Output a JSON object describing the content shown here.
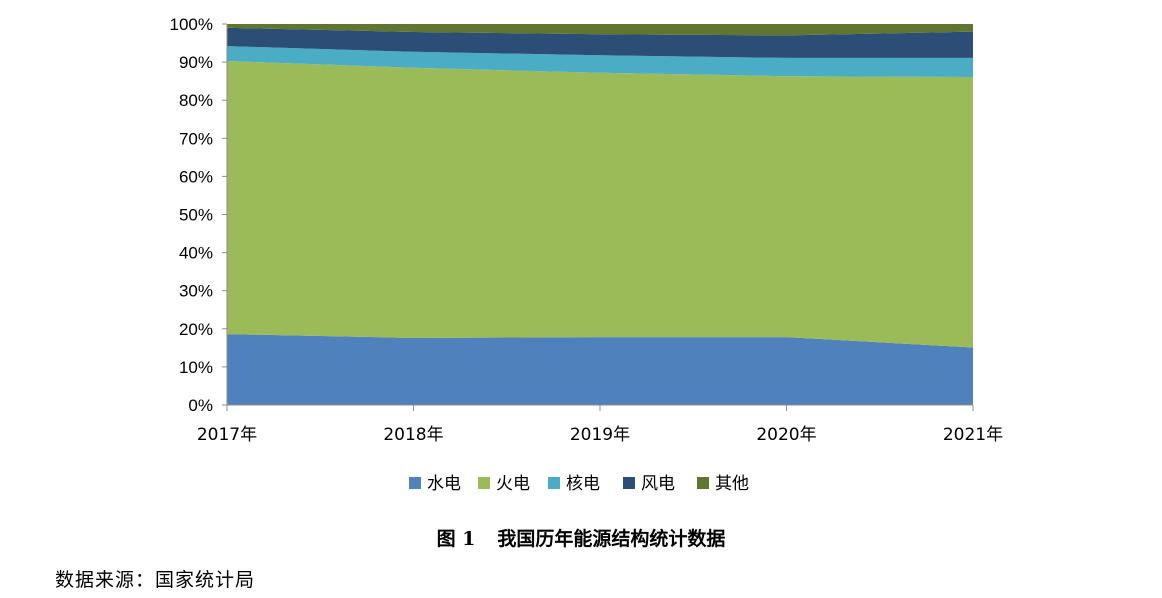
{
  "chart_data": {
    "type": "area",
    "stacked": true,
    "normalized": true,
    "categories": [
      "2017年",
      "2018年",
      "2019年",
      "2020年",
      "2021年"
    ],
    "series": [
      {
        "name": "水电",
        "color": "#4f81bd",
        "values": [
          18.6,
          17.6,
          17.8,
          17.8,
          15.1
        ]
      },
      {
        "name": "火电",
        "color": "#9bbb59",
        "values": [
          71.7,
          70.9,
          69.4,
          68.5,
          71.0
        ]
      },
      {
        "name": "核电",
        "color": "#4bacc6",
        "values": [
          3.9,
          4.2,
          4.6,
          4.8,
          5.0
        ]
      },
      {
        "name": "风电",
        "color": "#2c4d75",
        "values": [
          4.8,
          5.2,
          5.5,
          5.9,
          6.9
        ]
      },
      {
        "name": "其他",
        "color": "#5f7530",
        "values": [
          1.0,
          2.1,
          2.7,
          3.0,
          2.0
        ]
      }
    ],
    "y_ticks": [
      "0%",
      "10%",
      "20%",
      "30%",
      "40%",
      "50%",
      "60%",
      "70%",
      "80%",
      "90%",
      "100%"
    ],
    "ylim": [
      0,
      100
    ],
    "legend_position": "bottom",
    "grid": false
  },
  "caption": {
    "figure_number": "图 1",
    "title": "我国历年能源结构统计数据"
  },
  "source": "数据来源：国家统计局"
}
